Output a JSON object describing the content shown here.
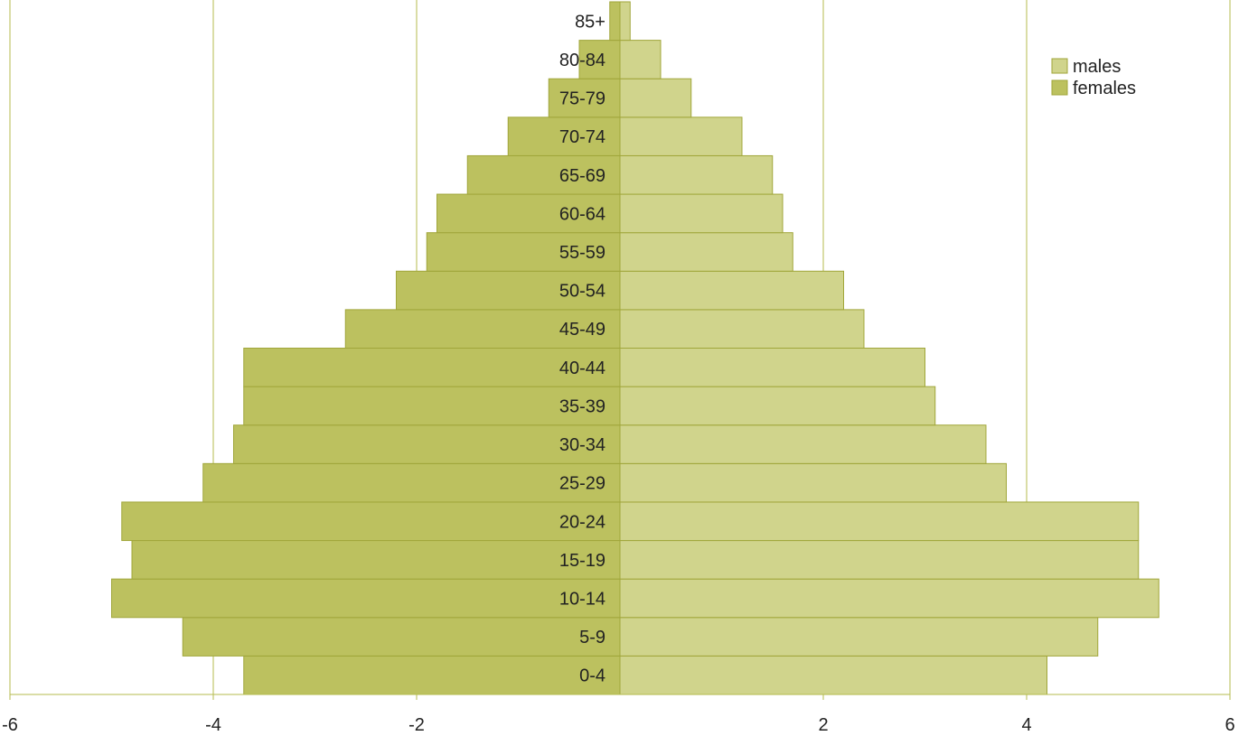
{
  "chart_data": {
    "type": "bar",
    "orientation": "horizontal",
    "layout": "population-pyramid",
    "title": "",
    "xlabel": "",
    "ylabel": "",
    "xlim": [
      -6,
      6
    ],
    "x_ticks": [
      -6,
      -4,
      -2,
      2,
      4,
      6
    ],
    "grid": true,
    "legend_position": "top-right",
    "categories": [
      "0-4",
      "5-9",
      "10-14",
      "15-19",
      "20-24",
      "25-29",
      "30-34",
      "35-39",
      "40-44",
      "45-49",
      "50-54",
      "55-59",
      "60-64",
      "65-69",
      "70-74",
      "75-79",
      "80-84",
      "85+"
    ],
    "series": [
      {
        "name": "males",
        "color": "#d0d48c",
        "values": [
          4.2,
          4.7,
          5.3,
          5.1,
          5.1,
          3.8,
          3.6,
          3.1,
          3.0,
          2.4,
          2.2,
          1.7,
          1.6,
          1.5,
          1.2,
          0.7,
          0.4,
          0.1
        ]
      },
      {
        "name": "females",
        "color": "#bcc15f",
        "values": [
          -3.7,
          -4.3,
          -5.0,
          -4.8,
          -4.9,
          -4.1,
          -3.8,
          -3.7,
          -3.7,
          -2.7,
          -2.2,
          -1.9,
          -1.8,
          -1.5,
          -1.1,
          -0.7,
          -0.4,
          -0.1
        ]
      }
    ]
  },
  "colors": {
    "grid": "#b5bb4d",
    "bar_stroke": "#a0a63a"
  }
}
